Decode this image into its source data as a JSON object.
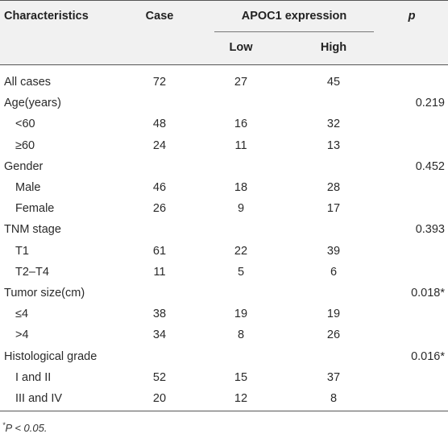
{
  "table": {
    "headers": {
      "characteristics": "Characteristics",
      "case": "Case",
      "group": "APOC1 expression",
      "low": "Low",
      "high": "High",
      "p": "p"
    },
    "rows": [
      {
        "label": "All cases",
        "case": "72",
        "low": "27",
        "high": "45",
        "p": "",
        "indent": false
      },
      {
        "label": "Age(years)",
        "case": "",
        "low": "",
        "high": "",
        "p": "0.219",
        "indent": false
      },
      {
        "label": "<60",
        "case": "48",
        "low": "16",
        "high": "32",
        "p": "",
        "indent": true
      },
      {
        "label": "≥60",
        "case": "24",
        "low": "11",
        "high": "13",
        "p": "",
        "indent": true
      },
      {
        "label": "Gender",
        "case": "",
        "low": "",
        "high": "",
        "p": "0.452",
        "indent": false
      },
      {
        "label": "Male",
        "case": "46",
        "low": "18",
        "high": "28",
        "p": "",
        "indent": true
      },
      {
        "label": "Female",
        "case": "26",
        "low": "9",
        "high": "17",
        "p": "",
        "indent": true
      },
      {
        "label": "TNM stage",
        "case": "",
        "low": "",
        "high": "",
        "p": "0.393",
        "indent": false
      },
      {
        "label": "T1",
        "case": "61",
        "low": "22",
        "high": "39",
        "p": "",
        "indent": true
      },
      {
        "label": "T2–T4",
        "case": "11",
        "low": "5",
        "high": "6",
        "p": "",
        "indent": true
      },
      {
        "label": "Tumor size(cm)",
        "case": "",
        "low": "",
        "high": "",
        "p": "0.018*",
        "indent": false
      },
      {
        "label": "≤4",
        "case": "38",
        "low": "19",
        "high": "19",
        "p": "",
        "indent": true
      },
      {
        "label": ">4",
        "case": "34",
        "low": "8",
        "high": "26",
        "p": "",
        "indent": true
      },
      {
        "label": "Histological grade",
        "case": "",
        "low": "",
        "high": "",
        "p": "0.016*",
        "indent": false
      },
      {
        "label": "I and II",
        "case": "52",
        "low": "15",
        "high": "37",
        "p": "",
        "indent": true
      },
      {
        "label": "III and IV",
        "case": "20",
        "low": "12",
        "high": "8",
        "p": "",
        "indent": true
      }
    ]
  },
  "footnote": {
    "sup": "*",
    "text": "P < 0.05."
  }
}
